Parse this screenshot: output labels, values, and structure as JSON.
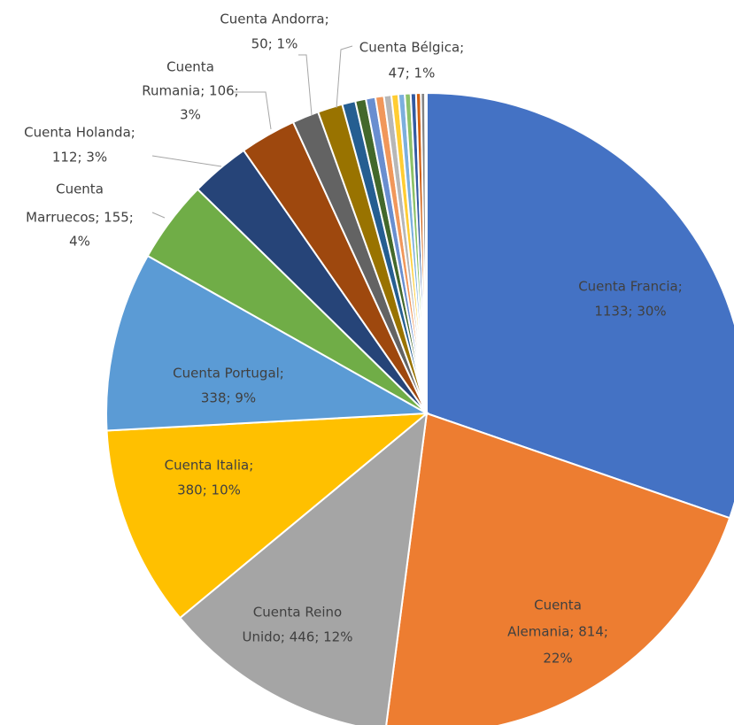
{
  "chart_data": {
    "type": "pie",
    "values": [
      1133,
      814,
      446,
      380,
      338,
      155,
      112,
      106,
      50,
      47,
      25,
      20,
      18,
      16,
      14,
      13,
      12,
      11,
      10,
      9,
      8,
      3
    ],
    "value_labels": [
      [
        "Cuenta Francia;",
        "1133; 30%"
      ],
      [
        "Cuenta",
        "Alemania; 814;",
        "22%"
      ],
      [
        "Cuenta Reino",
        "Unido; 446; 12%"
      ],
      [
        "Cuenta Italia;",
        "380; 10%"
      ],
      [
        "Cuenta Portugal;",
        "338; 9%"
      ],
      [
        "Cuenta",
        "Marruecos; 155;",
        "4%"
      ],
      [
        "Cuenta Holanda;",
        "112; 3%"
      ],
      [
        "Cuenta",
        "Rumania; 106;",
        "3%"
      ],
      [
        "Cuenta Andorra;",
        "50; 1%"
      ],
      [
        "Cuenta Bélgica;",
        "47; 1%"
      ],
      null,
      null,
      null,
      null,
      null,
      null,
      null,
      null,
      null,
      null,
      null,
      null
    ],
    "colors": [
      "#4472c4",
      "#ed7d31",
      "#a5a5a5",
      "#ffc000",
      "#5b9bd5",
      "#70ad47",
      "#264478",
      "#9e480e",
      "#636363",
      "#997300",
      "#255e91",
      "#43682b",
      "#698ed0",
      "#f1975a",
      "#b7b7b7",
      "#ffcd33",
      "#7cafdd",
      "#8cc168",
      "#335aa1",
      "#d26012",
      "#848484",
      "#cc9a00"
    ]
  }
}
